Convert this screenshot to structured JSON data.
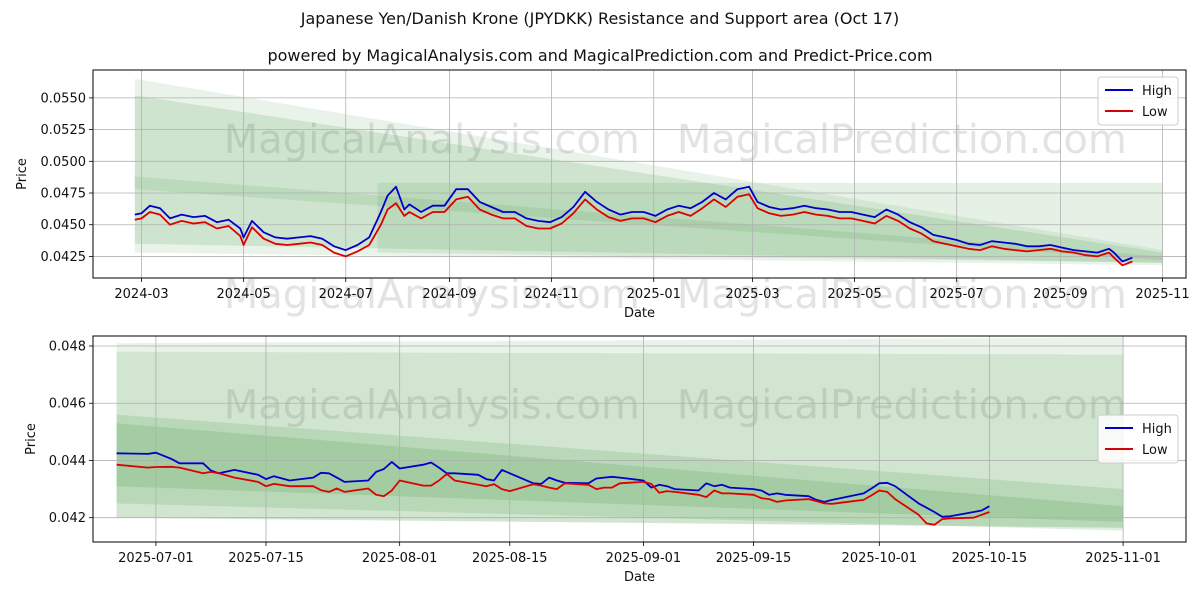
{
  "figure": {
    "title": "Japanese Yen/Danish Krone (JPYDKK) Resistance and Support area (Oct 17)",
    "subtitle": "powered by MagicalAnalysis.com and MagicalPrediction.com and Predict-Price.com",
    "watermark_left": "MagicalAnalysis.com",
    "watermark_right": "MagicalPrediction.com"
  },
  "colors": {
    "high": "#0000cc",
    "low": "#dd0000",
    "band": "#2e8b2e",
    "grid": "#b0b0b0",
    "watermark": "#e3e3e3"
  },
  "chart_data": [
    {
      "type": "line",
      "xlabel": "Date",
      "ylabel": "Price",
      "grid": true,
      "legend": "top-right",
      "xlim": [
        "2024-02-01",
        "2025-11-15"
      ],
      "ylim": [
        0.0408,
        0.0572
      ],
      "xticks": [
        "2024-03",
        "2024-05",
        "2024-07",
        "2024-09",
        "2024-11",
        "2025-01",
        "2025-03",
        "2025-05",
        "2025-07",
        "2025-09",
        "2025-11"
      ],
      "yticks": [
        "0.0425",
        "0.0450",
        "0.0475",
        "0.0500",
        "0.0525",
        "0.0550"
      ],
      "bands": [
        {
          "x": [
            "2024-02-26",
            "2025-11-01"
          ],
          "upper": [
            0.0565,
            0.043
          ],
          "lower": [
            0.0428,
            0.0418
          ],
          "opacity": 0.1
        },
        {
          "x": [
            "2024-02-26",
            "2025-11-01"
          ],
          "upper": [
            0.0552,
            0.0428
          ],
          "lower": [
            0.0435,
            0.042
          ],
          "opacity": 0.14
        },
        {
          "x": [
            "2024-02-26",
            "2025-11-01"
          ],
          "upper": [
            0.0488,
            0.0425
          ],
          "lower": [
            0.0478,
            0.0422
          ],
          "opacity": 0.12
        },
        {
          "x": [
            "2024-07-20",
            "2025-11-01"
          ],
          "upper": [
            0.0483,
            0.0483
          ],
          "lower": [
            0.0428,
            0.042
          ],
          "opacity": 0.12
        }
      ],
      "series": [
        {
          "name": "High",
          "x": [
            "2024-02-26",
            "2024-03-01",
            "2024-03-06",
            "2024-03-12",
            "2024-03-18",
            "2024-03-25",
            "2024-04-01",
            "2024-04-08",
            "2024-04-15",
            "2024-04-22",
            "2024-04-29",
            "2024-05-01",
            "2024-05-06",
            "2024-05-13",
            "2024-05-20",
            "2024-05-27",
            "2024-06-03",
            "2024-06-10",
            "2024-06-17",
            "2024-06-24",
            "2024-07-01",
            "2024-07-08",
            "2024-07-15",
            "2024-07-22",
            "2024-07-26",
            "2024-07-31",
            "2024-08-05",
            "2024-08-08",
            "2024-08-15",
            "2024-08-22",
            "2024-08-29",
            "2024-09-05",
            "2024-09-12",
            "2024-09-19",
            "2024-09-26",
            "2024-10-03",
            "2024-10-10",
            "2024-10-17",
            "2024-10-24",
            "2024-10-31",
            "2024-11-07",
            "2024-11-14",
            "2024-11-21",
            "2024-11-28",
            "2024-12-05",
            "2024-12-12",
            "2024-12-19",
            "2024-12-26",
            "2025-01-02",
            "2025-01-09",
            "2025-01-16",
            "2025-01-23",
            "2025-01-30",
            "2025-02-06",
            "2025-02-13",
            "2025-02-20",
            "2025-02-27",
            "2025-03-04",
            "2025-03-11",
            "2025-03-18",
            "2025-03-25",
            "2025-04-01",
            "2025-04-08",
            "2025-04-15",
            "2025-04-22",
            "2025-04-29",
            "2025-05-06",
            "2025-05-13",
            "2025-05-20",
            "2025-05-27",
            "2025-06-03",
            "2025-06-10",
            "2025-06-17",
            "2025-06-24",
            "2025-07-01",
            "2025-07-08",
            "2025-07-15",
            "2025-07-22",
            "2025-07-29",
            "2025-08-05",
            "2025-08-12",
            "2025-08-19",
            "2025-08-26",
            "2025-09-02",
            "2025-09-09",
            "2025-09-16",
            "2025-09-23",
            "2025-09-30",
            "2025-10-03",
            "2025-10-08",
            "2025-10-14"
          ],
          "values": [
            0.0458,
            0.0459,
            0.0465,
            0.0463,
            0.0455,
            0.0458,
            0.0456,
            0.0457,
            0.0452,
            0.0454,
            0.0447,
            0.044,
            0.0453,
            0.0444,
            0.044,
            0.0439,
            0.044,
            0.0441,
            0.0439,
            0.0433,
            0.043,
            0.0434,
            0.044,
            0.046,
            0.0473,
            0.048,
            0.0462,
            0.0466,
            0.046,
            0.0465,
            0.0465,
            0.0478,
            0.0478,
            0.0468,
            0.0464,
            0.046,
            0.046,
            0.0455,
            0.0453,
            0.0452,
            0.0456,
            0.0464,
            0.0476,
            0.0468,
            0.0462,
            0.0458,
            0.046,
            0.046,
            0.0457,
            0.0462,
            0.0465,
            0.0463,
            0.0468,
            0.0475,
            0.047,
            0.0478,
            0.048,
            0.0468,
            0.0464,
            0.0462,
            0.0463,
            0.0465,
            0.0463,
            0.0462,
            0.046,
            0.046,
            0.0458,
            0.0456,
            0.0462,
            0.0458,
            0.0452,
            0.0448,
            0.0442,
            0.044,
            0.0438,
            0.0435,
            0.0434,
            0.0437,
            0.0436,
            0.0435,
            0.0433,
            0.0433,
            0.0434,
            0.0432,
            0.043,
            0.0429,
            0.0428,
            0.0431,
            0.0428,
            0.0421,
            0.0424
          ]
        },
        {
          "name": "Low",
          "x": [
            "2024-02-26",
            "2024-03-01",
            "2024-03-06",
            "2024-03-12",
            "2024-03-18",
            "2024-03-25",
            "2024-04-01",
            "2024-04-08",
            "2024-04-15",
            "2024-04-22",
            "2024-04-29",
            "2024-05-01",
            "2024-05-06",
            "2024-05-13",
            "2024-05-20",
            "2024-05-27",
            "2024-06-03",
            "2024-06-10",
            "2024-06-17",
            "2024-06-24",
            "2024-07-01",
            "2024-07-08",
            "2024-07-15",
            "2024-07-22",
            "2024-07-26",
            "2024-07-31",
            "2024-08-05",
            "2024-08-08",
            "2024-08-15",
            "2024-08-22",
            "2024-08-29",
            "2024-09-05",
            "2024-09-12",
            "2024-09-19",
            "2024-09-26",
            "2024-10-03",
            "2024-10-10",
            "2024-10-17",
            "2024-10-24",
            "2024-10-31",
            "2024-11-07",
            "2024-11-14",
            "2024-11-21",
            "2024-11-28",
            "2024-12-05",
            "2024-12-12",
            "2024-12-19",
            "2024-12-26",
            "2025-01-02",
            "2025-01-09",
            "2025-01-16",
            "2025-01-23",
            "2025-01-30",
            "2025-02-06",
            "2025-02-13",
            "2025-02-20",
            "2025-02-27",
            "2025-03-04",
            "2025-03-11",
            "2025-03-18",
            "2025-03-25",
            "2025-04-01",
            "2025-04-08",
            "2025-04-15",
            "2025-04-22",
            "2025-04-29",
            "2025-05-06",
            "2025-05-13",
            "2025-05-20",
            "2025-05-27",
            "2025-06-03",
            "2025-06-10",
            "2025-06-17",
            "2025-06-24",
            "2025-07-01",
            "2025-07-08",
            "2025-07-15",
            "2025-07-22",
            "2025-07-29",
            "2025-08-05",
            "2025-08-12",
            "2025-08-19",
            "2025-08-26",
            "2025-09-02",
            "2025-09-09",
            "2025-09-16",
            "2025-09-23",
            "2025-09-30",
            "2025-10-03",
            "2025-10-08",
            "2025-10-14"
          ],
          "values": [
            0.0454,
            0.0455,
            0.046,
            0.0458,
            0.045,
            0.0453,
            0.0451,
            0.0452,
            0.0447,
            0.0449,
            0.0441,
            0.0434,
            0.0448,
            0.0439,
            0.0435,
            0.0434,
            0.0435,
            0.0436,
            0.0434,
            0.0428,
            0.0425,
            0.0429,
            0.0434,
            0.045,
            0.0462,
            0.0467,
            0.0457,
            0.046,
            0.0455,
            0.046,
            0.046,
            0.047,
            0.0472,
            0.0462,
            0.0458,
            0.0455,
            0.0455,
            0.0449,
            0.0447,
            0.0447,
            0.0451,
            0.0459,
            0.047,
            0.0462,
            0.0456,
            0.0453,
            0.0455,
            0.0455,
            0.0452,
            0.0457,
            0.046,
            0.0457,
            0.0463,
            0.047,
            0.0464,
            0.0472,
            0.0474,
            0.0463,
            0.0459,
            0.0457,
            0.0458,
            0.046,
            0.0458,
            0.0457,
            0.0455,
            0.0455,
            0.0453,
            0.0451,
            0.0457,
            0.0453,
            0.0447,
            0.0443,
            0.0437,
            0.0435,
            0.0433,
            0.0431,
            0.043,
            0.0433,
            0.0431,
            0.043,
            0.0429,
            0.043,
            0.0431,
            0.0429,
            0.0428,
            0.0426,
            0.0425,
            0.0428,
            0.0424,
            0.0418,
            0.0421
          ]
        }
      ]
    },
    {
      "type": "line",
      "xlabel": "Date",
      "ylabel": "Price",
      "grid": true,
      "legend": "center-right",
      "xlim": [
        "2025-06-23",
        "2025-11-09"
      ],
      "ylim": [
        0.04115,
        0.04835
      ],
      "xticks": [
        "2025-07-01",
        "2025-07-15",
        "2025-08-01",
        "2025-08-15",
        "2025-09-01",
        "2025-09-15",
        "2025-10-01",
        "2025-10-15",
        "2025-11-01"
      ],
      "yticks": [
        "0.042",
        "0.044",
        "0.046",
        "0.048"
      ],
      "bands": [
        {
          "x": [
            "2025-06-26",
            "2025-11-01"
          ],
          "upper": [
            0.0481,
            0.0483
          ],
          "lower": [
            0.042,
            0.04165
          ],
          "opacity": 0.1
        },
        {
          "x": [
            "2025-06-26",
            "2025-11-01"
          ],
          "upper": [
            0.0478,
            0.0477
          ],
          "lower": [
            0.042,
            0.04165
          ],
          "opacity": 0.13
        },
        {
          "x": [
            "2025-06-26",
            "2025-11-01"
          ],
          "upper": [
            0.0456,
            0.043
          ],
          "lower": [
            0.0425,
            0.04155
          ],
          "opacity": 0.15
        },
        {
          "x": [
            "2025-06-26",
            "2025-11-01"
          ],
          "upper": [
            0.0453,
            0.0424
          ],
          "lower": [
            0.0431,
            0.04185
          ],
          "opacity": 0.15
        }
      ],
      "series": [
        {
          "name": "High",
          "x": [
            "2025-06-26",
            "2025-06-30",
            "2025-07-01",
            "2025-07-03",
            "2025-07-04",
            "2025-07-07",
            "2025-07-08",
            "2025-07-09",
            "2025-07-11",
            "2025-07-14",
            "2025-07-15",
            "2025-07-16",
            "2025-07-18",
            "2025-07-21",
            "2025-07-22",
            "2025-07-23",
            "2025-07-24",
            "2025-07-25",
            "2025-07-28",
            "2025-07-29",
            "2025-07-30",
            "2025-07-31",
            "2025-08-01",
            "2025-08-04",
            "2025-08-05",
            "2025-08-06",
            "2025-08-07",
            "2025-08-08",
            "2025-08-11",
            "2025-08-12",
            "2025-08-13",
            "2025-08-14",
            "2025-08-15",
            "2025-08-18",
            "2025-08-19",
            "2025-08-20",
            "2025-08-21",
            "2025-08-22",
            "2025-08-25",
            "2025-08-26",
            "2025-08-27",
            "2025-08-28",
            "2025-08-29",
            "2025-09-01",
            "2025-09-02",
            "2025-09-03",
            "2025-09-04",
            "2025-09-05",
            "2025-09-08",
            "2025-09-09",
            "2025-09-10",
            "2025-09-11",
            "2025-09-12",
            "2025-09-15",
            "2025-09-16",
            "2025-09-17",
            "2025-09-18",
            "2025-09-19",
            "2025-09-22",
            "2025-09-23",
            "2025-09-24",
            "2025-09-25",
            "2025-09-26",
            "2025-09-29",
            "2025-09-30",
            "2025-10-01",
            "2025-10-02",
            "2025-10-03",
            "2025-10-06",
            "2025-10-07",
            "2025-10-08",
            "2025-10-09",
            "2025-10-10",
            "2025-10-13",
            "2025-10-14",
            "2025-10-15"
          ],
          "values": [
            0.04425,
            0.04423,
            0.04427,
            0.04405,
            0.0439,
            0.0439,
            0.04365,
            0.04355,
            0.04367,
            0.0435,
            0.04335,
            0.04345,
            0.0433,
            0.0434,
            0.04357,
            0.04355,
            0.0434,
            0.04325,
            0.0433,
            0.0436,
            0.0437,
            0.04395,
            0.04372,
            0.04385,
            0.04393,
            0.04375,
            0.04355,
            0.04355,
            0.0435,
            0.04335,
            0.0433,
            0.04367,
            0.04355,
            0.0432,
            0.04318,
            0.0434,
            0.0433,
            0.04322,
            0.0432,
            0.04337,
            0.0434,
            0.04343,
            0.0434,
            0.0433,
            0.04305,
            0.04315,
            0.0431,
            0.043,
            0.04295,
            0.0432,
            0.0431,
            0.04315,
            0.04305,
            0.043,
            0.04295,
            0.0428,
            0.04285,
            0.0428,
            0.04275,
            0.04262,
            0.04255,
            0.04262,
            0.04268,
            0.04285,
            0.04302,
            0.0432,
            0.04322,
            0.0431,
            0.0425,
            0.04235,
            0.0422,
            0.04203,
            0.04205,
            0.0422,
            0.04225,
            0.0424
          ]
        },
        {
          "name": "Low",
          "x": [
            "2025-06-26",
            "2025-06-30",
            "2025-07-01",
            "2025-07-03",
            "2025-07-04",
            "2025-07-07",
            "2025-07-08",
            "2025-07-09",
            "2025-07-11",
            "2025-07-14",
            "2025-07-15",
            "2025-07-16",
            "2025-07-18",
            "2025-07-21",
            "2025-07-22",
            "2025-07-23",
            "2025-07-24",
            "2025-07-25",
            "2025-07-28",
            "2025-07-29",
            "2025-07-30",
            "2025-07-31",
            "2025-08-01",
            "2025-08-04",
            "2025-08-05",
            "2025-08-06",
            "2025-08-07",
            "2025-08-08",
            "2025-08-11",
            "2025-08-12",
            "2025-08-13",
            "2025-08-14",
            "2025-08-15",
            "2025-08-18",
            "2025-08-19",
            "2025-08-20",
            "2025-08-21",
            "2025-08-22",
            "2025-08-25",
            "2025-08-26",
            "2025-08-27",
            "2025-08-28",
            "2025-08-29",
            "2025-09-01",
            "2025-09-02",
            "2025-09-03",
            "2025-09-04",
            "2025-09-05",
            "2025-09-08",
            "2025-09-09",
            "2025-09-10",
            "2025-09-11",
            "2025-09-12",
            "2025-09-15",
            "2025-09-16",
            "2025-09-17",
            "2025-09-18",
            "2025-09-19",
            "2025-09-22",
            "2025-09-23",
            "2025-09-24",
            "2025-09-25",
            "2025-09-26",
            "2025-09-29",
            "2025-09-30",
            "2025-10-01",
            "2025-10-02",
            "2025-10-03",
            "2025-10-06",
            "2025-10-07",
            "2025-10-08",
            "2025-10-09",
            "2025-10-10",
            "2025-10-13",
            "2025-10-14",
            "2025-10-15"
          ],
          "values": [
            0.04385,
            0.04375,
            0.04377,
            0.04378,
            0.04375,
            0.04355,
            0.0436,
            0.04355,
            0.0434,
            0.04325,
            0.0431,
            0.04318,
            0.0431,
            0.0431,
            0.04296,
            0.0429,
            0.04302,
            0.0429,
            0.04302,
            0.0428,
            0.04275,
            0.04295,
            0.0433,
            0.04312,
            0.04312,
            0.0433,
            0.04353,
            0.0433,
            0.04315,
            0.0431,
            0.04317,
            0.043,
            0.04293,
            0.04317,
            0.04312,
            0.04305,
            0.043,
            0.0432,
            0.04315,
            0.043,
            0.04305,
            0.04305,
            0.0432,
            0.04325,
            0.04318,
            0.04287,
            0.04293,
            0.0429,
            0.0428,
            0.04272,
            0.04295,
            0.04285,
            0.04285,
            0.0428,
            0.04268,
            0.04265,
            0.04255,
            0.0426,
            0.04265,
            0.04258,
            0.0425,
            0.04248,
            0.04252,
            0.04262,
            0.04278,
            0.04295,
            0.0429,
            0.04265,
            0.0421,
            0.0418,
            0.04175,
            0.04195,
            0.04198,
            0.042,
            0.0421,
            0.0422
          ]
        }
      ]
    }
  ]
}
